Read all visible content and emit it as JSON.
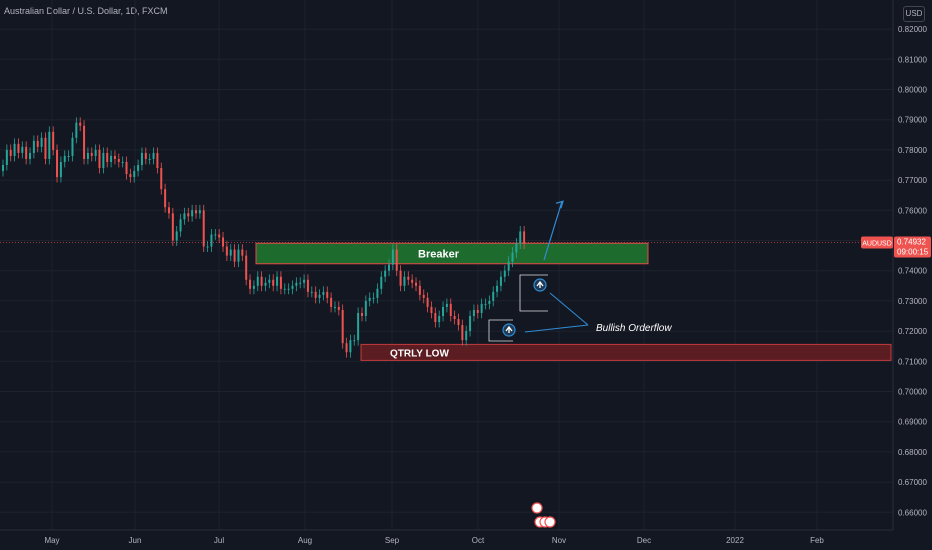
{
  "header": {
    "title": "Australian Dollar / U.S. Dollar, 1D, FXCM",
    "currency_label": "USD"
  },
  "colors": {
    "up": "#26a69a",
    "down": "#ef5350",
    "background": "#131722",
    "grid": "#1e222d",
    "text": "#b2b5be",
    "zone_breaker": "#1e6b2e",
    "zone_low": "#5c1d22",
    "annotation": "#2f8dd6"
  },
  "chart_data": {
    "type": "candlestick",
    "title": "Australian Dollar / U.S. Dollar, 1D, FXCM",
    "ylim": [
      0.66,
      0.825
    ],
    "y_ticks": [
      "0.82000",
      "0.81000",
      "0.80000",
      "0.79000",
      "0.78000",
      "0.77000",
      "0.76000",
      "0.75000",
      "0.74000",
      "0.73000",
      "0.72000",
      "0.71000",
      "0.70000",
      "0.69000",
      "0.68000",
      "0.67000",
      "0.66000"
    ],
    "x_ticks": [
      "May",
      "Jun",
      "Jul",
      "Aug",
      "Sep",
      "Oct",
      "Nov",
      "Dec",
      "2022",
      "Feb"
    ],
    "grid": true,
    "last_price": {
      "symbol": "AUDUSD",
      "value": "0.74932",
      "countdown": "09:00:15"
    },
    "candle_closes": [
      0.775,
      0.78,
      0.778,
      0.782,
      0.779,
      0.781,
      0.777,
      0.779,
      0.783,
      0.781,
      0.784,
      0.777,
      0.786,
      0.78,
      0.771,
      0.776,
      0.778,
      0.778,
      0.784,
      0.789,
      0.788,
      0.777,
      0.779,
      0.778,
      0.78,
      0.774,
      0.779,
      0.776,
      0.778,
      0.777,
      0.776,
      0.776,
      0.772,
      0.771,
      0.773,
      0.775,
      0.779,
      0.777,
      0.777,
      0.779,
      0.774,
      0.767,
      0.761,
      0.759,
      0.75,
      0.753,
      0.757,
      0.759,
      0.758,
      0.76,
      0.759,
      0.76,
      0.748,
      0.748,
      0.752,
      0.752,
      0.751,
      0.748,
      0.745,
      0.747,
      0.743,
      0.747,
      0.745,
      0.737,
      0.734,
      0.735,
      0.738,
      0.735,
      0.736,
      0.737,
      0.735,
      0.738,
      0.734,
      0.734,
      0.734,
      0.735,
      0.736,
      0.736,
      0.737,
      0.733,
      0.733,
      0.731,
      0.732,
      0.733,
      0.731,
      0.728,
      0.728,
      0.727,
      0.716,
      0.713,
      0.717,
      0.717,
      0.726,
      0.725,
      0.73,
      0.731,
      0.731,
      0.734,
      0.738,
      0.74,
      0.742,
      0.747,
      0.74,
      0.735,
      0.738,
      0.737,
      0.736,
      0.735,
      0.732,
      0.731,
      0.728,
      0.726,
      0.723,
      0.725,
      0.728,
      0.729,
      0.725,
      0.724,
      0.722,
      0.717,
      0.72,
      0.725,
      0.727,
      0.726,
      0.729,
      0.729,
      0.73,
      0.733,
      0.735,
      0.738,
      0.74,
      0.743,
      0.746,
      0.749,
      0.753,
      0.749
    ],
    "annotations": [
      {
        "type": "zone",
        "label": "Breaker",
        "y_top": 0.7491,
        "y_bottom": 0.7423
      },
      {
        "type": "zone",
        "label": "QTRLY LOW",
        "y_top": 0.7156,
        "y_bottom": 0.7103
      },
      {
        "type": "text",
        "label": "Bullish Orderflow"
      },
      {
        "type": "arrow",
        "direction": "up",
        "target_price": 0.763
      }
    ]
  }
}
